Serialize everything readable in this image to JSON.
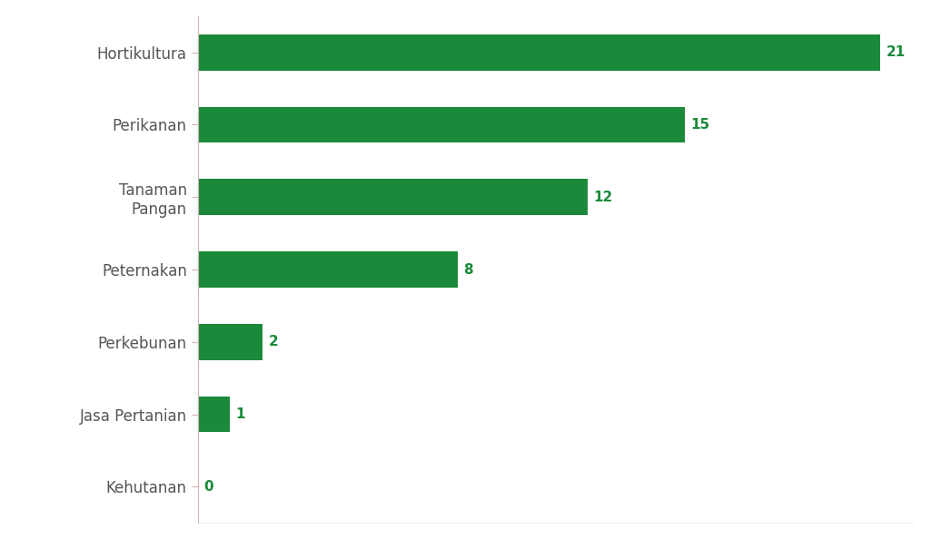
{
  "chart_data": {
    "type": "bar",
    "orientation": "horizontal",
    "categories": [
      "Hortikultura",
      "Perikanan",
      "Tanaman\nPangan",
      "Peternakan",
      "Perkebunan",
      "Jasa Pertanian",
      "Kehutanan"
    ],
    "values": [
      21,
      15,
      12,
      8,
      2,
      1,
      0
    ],
    "color": "#1a8a3a",
    "xlim": [
      0,
      22
    ],
    "data_labels": true,
    "tick_labels": "y",
    "grid": false
  }
}
